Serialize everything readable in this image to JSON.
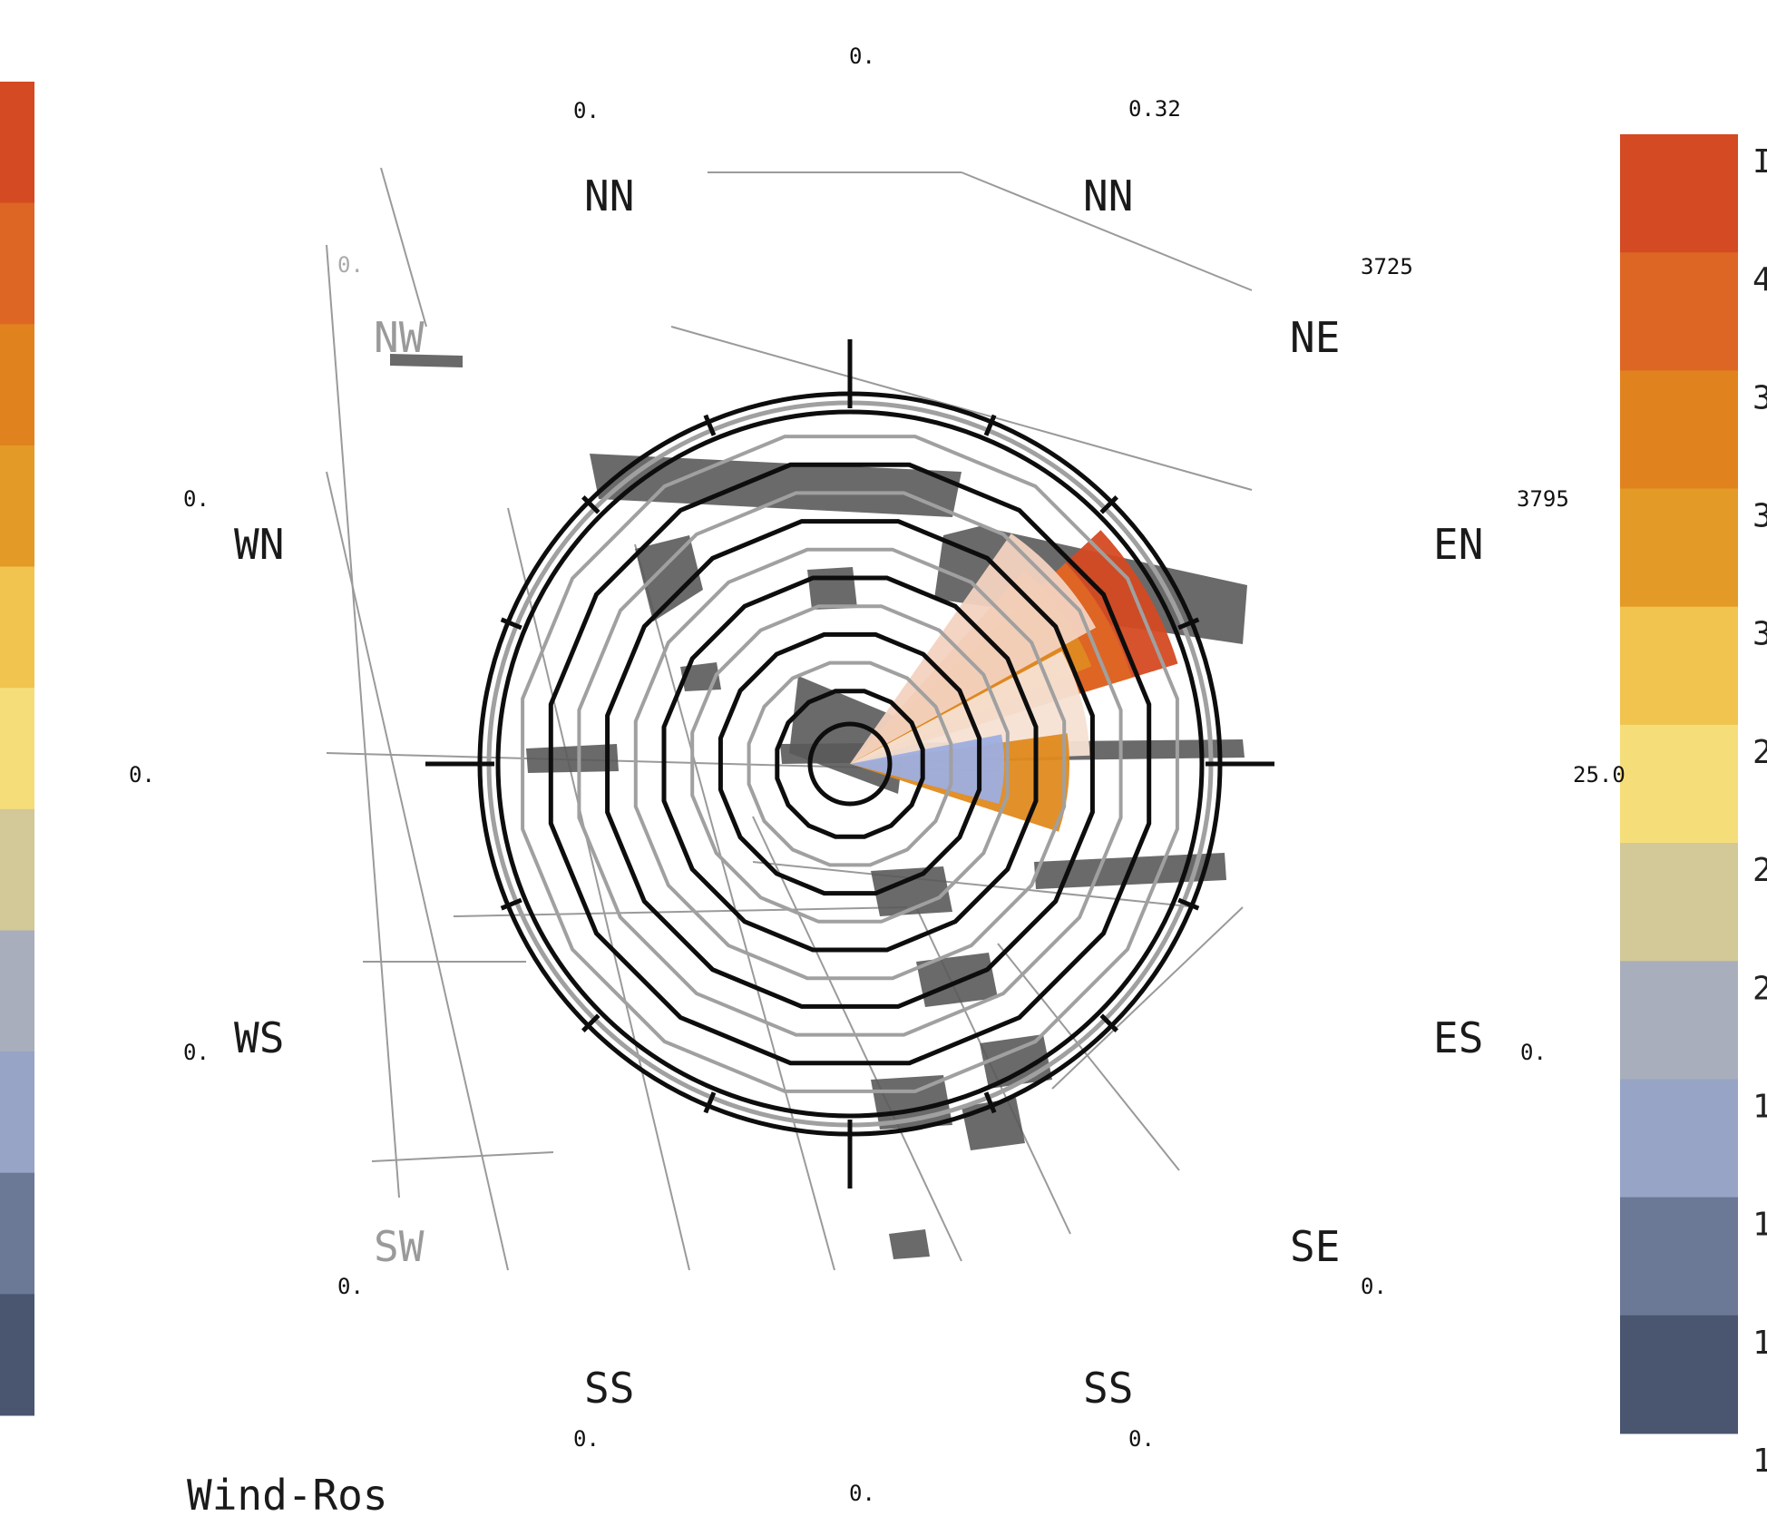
{
  "chart_data": {
    "type": "wind-rose",
    "title": "Wind-Ros",
    "direction_labels": [
      {
        "text": "NN",
        "faded": false
      },
      {
        "text": "NN",
        "faded": false
      },
      {
        "text": "NE",
        "faded": false
      },
      {
        "text": "EN",
        "faded": false
      },
      {
        "text": "ES",
        "faded": false
      },
      {
        "text": "SE",
        "faded": false
      },
      {
        "text": "SS",
        "faded": false
      },
      {
        "text": "SS",
        "faded": false
      },
      {
        "text": "SW",
        "faded": true
      },
      {
        "text": "WS",
        "faded": false
      },
      {
        "text": "WN",
        "faded": false
      },
      {
        "text": "NW",
        "faded": true
      }
    ],
    "value_labels": [
      {
        "text": "0.",
        "faded": false
      },
      {
        "text": "0.",
        "faded": false
      },
      {
        "text": "0.32",
        "faded": false
      },
      {
        "text": "3725",
        "faded": false
      },
      {
        "text": "3795",
        "faded": false
      },
      {
        "text": "25.0",
        "faded": false
      },
      {
        "text": "0.",
        "faded": false
      },
      {
        "text": "0.",
        "faded": false
      },
      {
        "text": "0.",
        "faded": false
      },
      {
        "text": "0.",
        "faded": false
      },
      {
        "text": "0.",
        "faded": false
      },
      {
        "text": "0.",
        "faded": false
      },
      {
        "text": "0.",
        "faded": false
      },
      {
        "text": "0.",
        "faded": false
      },
      {
        "text": "0.",
        "faded": false
      },
      {
        "text": "0.",
        "faded": true
      }
    ],
    "ring_count": 10,
    "sectors": [
      {
        "direction_deg": 60,
        "extent": 1.0,
        "color": "#d44a22"
      },
      {
        "direction_deg": 60,
        "extent": 0.86,
        "color": "#de6624"
      },
      {
        "direction_deg": 55,
        "extent": 0.76,
        "color": "#de8a22"
      },
      {
        "direction_deg": 48,
        "extent": 0.82,
        "color": "#f3d2c0"
      },
      {
        "direction_deg": 75,
        "extent": 0.7,
        "color": "#f5e2d4"
      },
      {
        "direction_deg": 95,
        "extent": 0.64,
        "color": "#e08a1e"
      },
      {
        "direction_deg": 92,
        "extent": 0.45,
        "color": "#9daee0"
      }
    ],
    "legend": {
      "colors": [
        "#d44a22",
        "#de6624",
        "#e0821e",
        "#e39a26",
        "#f0c44e",
        "#f5de7a",
        "#d2c898",
        "#a8aebb",
        "#97a4c6",
        "#6b7896",
        "#4a5570"
      ],
      "tick_labels": [
        "I",
        "4",
        "3",
        "3",
        "3",
        "2",
        "2",
        "2",
        "1",
        "1",
        "1",
        "1"
      ]
    },
    "left_legend": {
      "colors": [
        "#d44a22",
        "#de6624",
        "#e0821e",
        "#e39a26",
        "#f0c44e",
        "#f5de7a",
        "#d2c898",
        "#a8aebb",
        "#97a4c6",
        "#6b7896",
        "#4a5570"
      ]
    }
  }
}
